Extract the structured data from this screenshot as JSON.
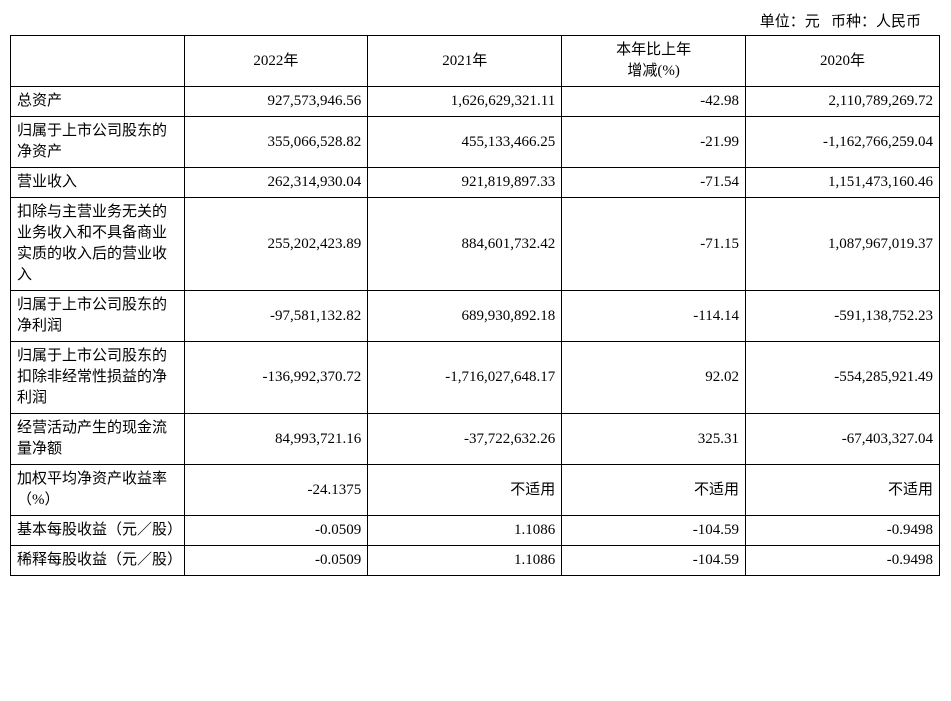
{
  "caption": {
    "unit_label": "单位：元",
    "currency_label": "币种：人民币"
  },
  "table": {
    "type": "table",
    "background_color": "#ffffff",
    "border_color": "#000000",
    "text_color": "#000000",
    "font_size": 15,
    "columns": [
      {
        "label": "",
        "align": "left",
        "width": 170
      },
      {
        "label": "2022年",
        "align": "right",
        "width": 180
      },
      {
        "label": "2021年",
        "align": "right",
        "width": 190
      },
      {
        "label": "本年比上年\n增减(%)",
        "align": "right",
        "width": 180
      },
      {
        "label": "2020年",
        "align": "right",
        "width": 190
      }
    ],
    "rows": [
      {
        "label": "总资产",
        "cells": [
          "927,573,946.56",
          "1,626,629,321.11",
          "-42.98",
          "2,110,789,269.72"
        ]
      },
      {
        "label": "归属于上市公司股东的净资产",
        "cells": [
          "355,066,528.82",
          "455,133,466.25",
          "-21.99",
          "-1,162,766,259.04"
        ]
      },
      {
        "label": "营业收入",
        "cells": [
          "262,314,930.04",
          "921,819,897.33",
          "-71.54",
          "1,151,473,160.46"
        ]
      },
      {
        "label": "扣除与主营业务无关的业务收入和不具备商业实质的收入后的营业收入",
        "cells": [
          "255,202,423.89",
          "884,601,732.42",
          "-71.15",
          "1,087,967,019.37"
        ]
      },
      {
        "label": "归属于上市公司股东的净利润",
        "cells": [
          "-97,581,132.82",
          "689,930,892.18",
          "-114.14",
          "-591,138,752.23"
        ]
      },
      {
        "label": "归属于上市公司股东的扣除非经常性损益的净利润",
        "cells": [
          "-136,992,370.72",
          "-1,716,027,648.17",
          "92.02",
          "-554,285,921.49"
        ]
      },
      {
        "label": "经营活动产生的现金流量净额",
        "cells": [
          "84,993,721.16",
          "-37,722,632.26",
          "325.31",
          "-67,403,327.04"
        ]
      },
      {
        "label": "加权平均净资产收益率（%）",
        "cells": [
          "-24.1375",
          "不适用",
          "不适用",
          "不适用"
        ]
      },
      {
        "label": "基本每股收益（元／股）",
        "cells": [
          "-0.0509",
          "1.1086",
          "-104.59",
          "-0.9498"
        ]
      },
      {
        "label": "稀释每股收益（元／股）",
        "cells": [
          "-0.0509",
          "1.1086",
          "-104.59",
          "-0.9498"
        ]
      }
    ]
  }
}
